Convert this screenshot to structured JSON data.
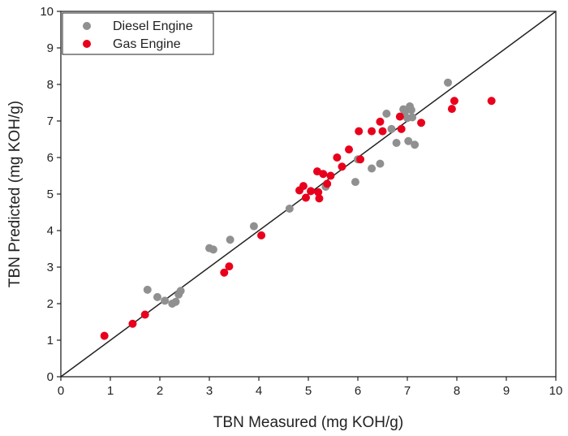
{
  "chart_data": {
    "type": "scatter",
    "title": "",
    "xlabel": "TBN Measured (mg KOH/g)",
    "ylabel": "TBN Predicted (mg KOH/g)",
    "xlim": [
      0,
      10
    ],
    "ylim": [
      0,
      10
    ],
    "x_ticks": [
      "0",
      "1",
      "2",
      "3",
      "4",
      "5",
      "6",
      "7",
      "8",
      "9",
      "10"
    ],
    "y_ticks": [
      "0",
      "1",
      "2",
      "3",
      "4",
      "5",
      "6",
      "7",
      "8",
      "9",
      "10"
    ],
    "grid": false,
    "legend_position": "top-left",
    "reference_line": {
      "x": [
        0,
        10
      ],
      "y": [
        0,
        10
      ]
    },
    "series": [
      {
        "name": "Diesel Engine",
        "color": "#909090",
        "points": [
          [
            1.75,
            2.38
          ],
          [
            1.95,
            2.18
          ],
          [
            2.1,
            2.08
          ],
          [
            2.25,
            2.0
          ],
          [
            2.32,
            2.05
          ],
          [
            2.38,
            2.25
          ],
          [
            2.42,
            2.35
          ],
          [
            3.0,
            3.52
          ],
          [
            3.08,
            3.48
          ],
          [
            3.42,
            3.75
          ],
          [
            3.9,
            4.12
          ],
          [
            4.62,
            4.6
          ],
          [
            5.35,
            5.2
          ],
          [
            5.95,
            5.33
          ],
          [
            6.0,
            5.95
          ],
          [
            6.28,
            5.7
          ],
          [
            6.45,
            5.83
          ],
          [
            6.58,
            7.2
          ],
          [
            6.68,
            6.78
          ],
          [
            6.78,
            6.4
          ],
          [
            6.92,
            7.32
          ],
          [
            6.95,
            7.25
          ],
          [
            7.0,
            7.08
          ],
          [
            7.02,
            6.45
          ],
          [
            7.05,
            7.4
          ],
          [
            7.08,
            7.3
          ],
          [
            7.1,
            7.1
          ],
          [
            7.15,
            6.35
          ],
          [
            7.82,
            8.05
          ]
        ]
      },
      {
        "name": "Gas Engine",
        "color": "#e8001c",
        "points": [
          [
            0.88,
            1.12
          ],
          [
            1.45,
            1.45
          ],
          [
            1.7,
            1.7
          ],
          [
            3.3,
            2.85
          ],
          [
            3.4,
            3.02
          ],
          [
            4.05,
            3.87
          ],
          [
            4.82,
            5.1
          ],
          [
            4.9,
            5.22
          ],
          [
            4.95,
            4.9
          ],
          [
            5.05,
            5.08
          ],
          [
            5.18,
            5.62
          ],
          [
            5.2,
            5.05
          ],
          [
            5.22,
            4.88
          ],
          [
            5.3,
            5.55
          ],
          [
            5.38,
            5.28
          ],
          [
            5.45,
            5.5
          ],
          [
            5.58,
            6.0
          ],
          [
            5.68,
            5.75
          ],
          [
            5.82,
            6.22
          ],
          [
            6.02,
            6.72
          ],
          [
            6.05,
            5.95
          ],
          [
            6.28,
            6.72
          ],
          [
            6.45,
            6.98
          ],
          [
            6.5,
            6.72
          ],
          [
            6.85,
            7.12
          ],
          [
            6.88,
            6.78
          ],
          [
            7.28,
            6.95
          ],
          [
            7.9,
            7.33
          ],
          [
            7.95,
            7.55
          ],
          [
            8.7,
            7.55
          ]
        ]
      }
    ]
  }
}
